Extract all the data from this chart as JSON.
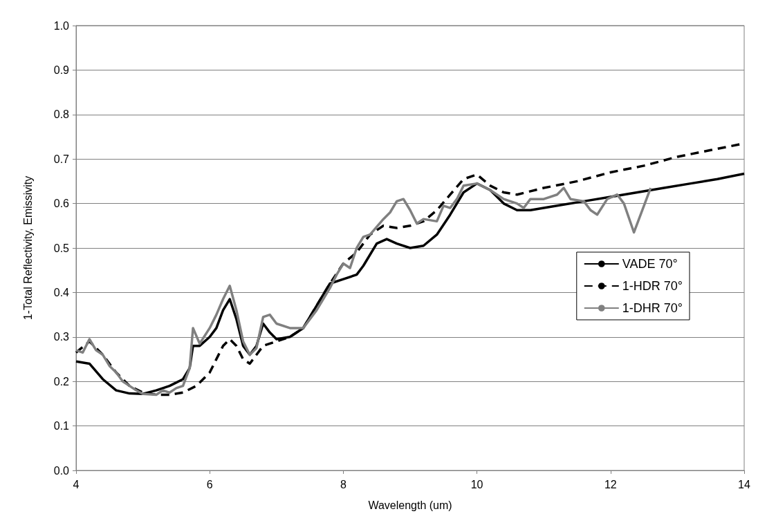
{
  "chart_data": {
    "type": "line",
    "xlabel": "Wavelength (um)",
    "ylabel": "1-Total Reflectivity, Emissivity",
    "xlim": [
      4,
      14
    ],
    "xticks": [
      4,
      6,
      8,
      10,
      12,
      14
    ],
    "ylim": [
      0,
      1
    ],
    "yticks": [
      {
        "value": 0,
        "label": "0.0"
      },
      0.1,
      0.2,
      0.3,
      0.4,
      0.5,
      0.6,
      0.7,
      0.8,
      0.9,
      {
        "value": 1,
        "label": "1.0"
      }
    ],
    "grid": "y",
    "legend": "right",
    "marker": "none",
    "series": [
      {
        "name": "VADE 70°",
        "color": "#000000",
        "line_style": "solid",
        "x": [
          4.0,
          4.2,
          4.4,
          4.6,
          4.8,
          5.0,
          5.2,
          5.4,
          5.6,
          5.7,
          5.75,
          5.85,
          6.0,
          6.1,
          6.2,
          6.3,
          6.4,
          6.5,
          6.6,
          6.7,
          6.8,
          6.9,
          7.0,
          7.2,
          7.4,
          7.6,
          7.8,
          8.0,
          8.2,
          8.3,
          8.5,
          8.65,
          8.8,
          9.0,
          9.2,
          9.4,
          9.6,
          9.8,
          10.0,
          10.2,
          10.4,
          10.6,
          10.8,
          11.2,
          11.6,
          12.0,
          12.4,
          12.8,
          13.2,
          13.6,
          14.0
        ],
        "values": [
          0.245,
          0.24,
          0.205,
          0.18,
          0.173,
          0.172,
          0.18,
          0.19,
          0.205,
          0.23,
          0.28,
          0.28,
          0.3,
          0.32,
          0.36,
          0.385,
          0.34,
          0.28,
          0.26,
          0.28,
          0.33,
          0.31,
          0.295,
          0.3,
          0.32,
          0.37,
          0.42,
          0.43,
          0.44,
          0.46,
          0.51,
          0.52,
          0.51,
          0.5,
          0.505,
          0.53,
          0.575,
          0.625,
          0.645,
          0.63,
          0.6,
          0.585,
          0.585,
          0.595,
          0.605,
          0.615,
          0.625,
          0.635,
          0.645,
          0.655,
          0.667
        ]
      },
      {
        "name": "1-HDR 70°",
        "color": "#000000",
        "line_style": "dashed",
        "x": [
          4.0,
          4.2,
          4.4,
          4.6,
          4.8,
          5.0,
          5.2,
          5.4,
          5.6,
          5.8,
          6.0,
          6.2,
          6.3,
          6.4,
          6.5,
          6.6,
          6.8,
          7.0,
          7.2,
          7.4,
          7.6,
          7.8,
          8.0,
          8.2,
          8.4,
          8.6,
          8.8,
          9.0,
          9.2,
          9.4,
          9.6,
          9.8,
          10.0,
          10.2,
          10.4,
          10.6,
          11.0,
          11.5,
          12.0,
          12.5,
          13.0,
          13.5,
          14.0
        ],
        "values": [
          0.265,
          0.29,
          0.26,
          0.22,
          0.19,
          0.175,
          0.17,
          0.17,
          0.175,
          0.19,
          0.22,
          0.28,
          0.295,
          0.28,
          0.25,
          0.24,
          0.28,
          0.29,
          0.3,
          0.32,
          0.37,
          0.42,
          0.465,
          0.49,
          0.53,
          0.55,
          0.545,
          0.55,
          0.56,
          0.585,
          0.62,
          0.655,
          0.665,
          0.64,
          0.625,
          0.62,
          0.635,
          0.65,
          0.67,
          0.685,
          0.705,
          0.72,
          0.735
        ]
      },
      {
        "name": "1-DHR 70°",
        "color": "#808080",
        "line_style": "solid",
        "x": [
          4.0,
          4.1,
          4.2,
          4.3,
          4.4,
          4.5,
          4.6,
          4.7,
          4.8,
          4.9,
          5.0,
          5.2,
          5.3,
          5.4,
          5.5,
          5.6,
          5.7,
          5.75,
          5.85,
          6.0,
          6.1,
          6.2,
          6.3,
          6.4,
          6.5,
          6.6,
          6.7,
          6.8,
          6.9,
          7.0,
          7.2,
          7.4,
          7.6,
          7.8,
          7.9,
          8.0,
          8.1,
          8.2,
          8.3,
          8.4,
          8.6,
          8.7,
          8.8,
          8.9,
          9.0,
          9.1,
          9.2,
          9.4,
          9.5,
          9.6,
          9.7,
          9.8,
          10.0,
          10.2,
          10.4,
          10.6,
          10.7,
          10.8,
          11.0,
          11.2,
          11.3,
          11.4,
          11.6,
          11.7,
          11.8,
          11.95,
          12.1,
          12.2,
          12.35,
          12.6
        ],
        "values": [
          0.27,
          0.265,
          0.295,
          0.27,
          0.26,
          0.235,
          0.22,
          0.2,
          0.19,
          0.18,
          0.172,
          0.17,
          0.18,
          0.175,
          0.185,
          0.19,
          0.23,
          0.32,
          0.285,
          0.32,
          0.35,
          0.385,
          0.415,
          0.36,
          0.29,
          0.26,
          0.275,
          0.345,
          0.35,
          0.33,
          0.32,
          0.32,
          0.36,
          0.41,
          0.44,
          0.465,
          0.455,
          0.5,
          0.525,
          0.53,
          0.565,
          0.58,
          0.605,
          0.61,
          0.585,
          0.555,
          0.565,
          0.56,
          0.595,
          0.59,
          0.61,
          0.64,
          0.645,
          0.63,
          0.61,
          0.6,
          0.59,
          0.61,
          0.61,
          0.62,
          0.635,
          0.61,
          0.605,
          0.585,
          0.575,
          0.61,
          0.62,
          0.6,
          0.535,
          0.635
        ]
      }
    ]
  }
}
